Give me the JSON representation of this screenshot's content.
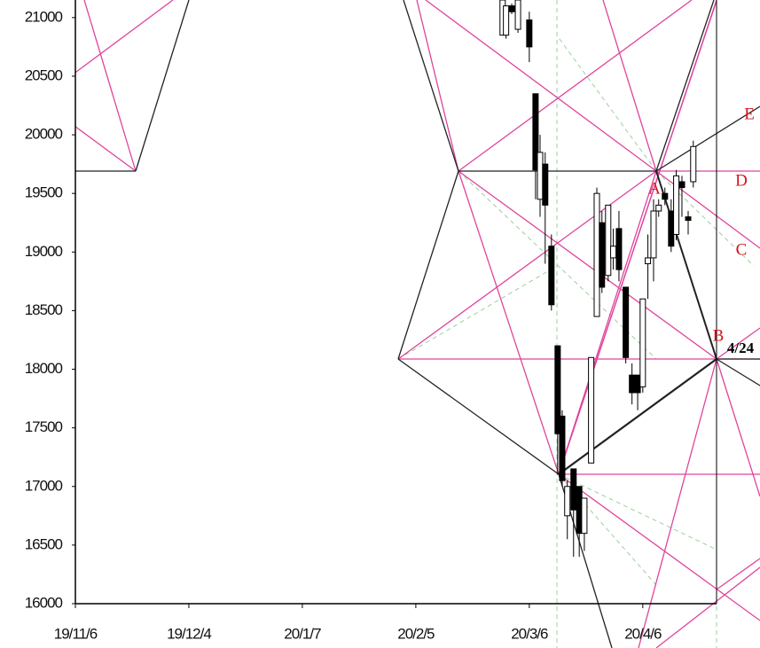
{
  "chart_data": {
    "type": "candlestick",
    "x": [
      75.3,
      75.9,
      76.9,
      78,
      80,
      81.1,
      81.9,
      82.8,
      83.9,
      85,
      85.8,
      86.7,
      87.8,
      88.8,
      89.7,
      90.9,
      91.9,
      92.8,
      93.9,
      94.8,
      95.8,
      97,
      98.1,
      99.1,
      100,
      100.9,
      101.9,
      102.8,
      103.9,
      105,
      105.9,
      106.9,
      108,
      108.9
    ],
    "open": [
      20850,
      20850,
      21100,
      20900,
      20980,
      20350,
      19450,
      19750,
      19050,
      18200,
      17600,
      16750,
      17150,
      17000,
      16600,
      17200,
      18450,
      19250,
      18800,
      18950,
      19200,
      18700,
      17950,
      17950,
      17850,
      18900,
      18950,
      19350,
      19500,
      19350,
      19150,
      19600,
      19300,
      19600
    ],
    "high": [
      21150,
      21100,
      21120,
      21150,
      21050,
      20350,
      20000,
      19850,
      19150,
      18200,
      17650,
      17050,
      17150,
      17000,
      16900,
      18100,
      19550,
      19350,
      19400,
      19200,
      19350,
      18700,
      18050,
      17950,
      18600,
      19150,
      19450,
      19450,
      19550,
      19450,
      19700,
      19650,
      19350,
      19950
    ],
    "low": [
      20850,
      20820,
      21030,
      20870,
      20620,
      19450,
      19300,
      18900,
      18500,
      17100,
      17000,
      16550,
      16400,
      16400,
      16450,
      17200,
      18450,
      18650,
      18750,
      18850,
      18750,
      18050,
      17700,
      17650,
      17800,
      18600,
      18750,
      19300,
      19400,
      19000,
      19100,
      19300,
      19150,
      19550
    ],
    "close": [
      21150,
      21100,
      21050,
      21150,
      20750,
      19700,
      19850,
      19400,
      18550,
      17450,
      17050,
      17000,
      16800,
      16600,
      16900,
      18100,
      19500,
      18700,
      19400,
      19050,
      18850,
      18100,
      17800,
      17800,
      18600,
      18950,
      19350,
      19400,
      19450,
      19050,
      19650,
      19550,
      19270,
      19900
    ],
    "xlim": [
      0,
      113
    ],
    "ylim": [
      16000,
      21150
    ],
    "yticks": [
      16000,
      16500,
      17000,
      17500,
      18000,
      18500,
      19000,
      19500,
      20000,
      20500,
      21000
    ],
    "xticks": [
      {
        "value": 0,
        "label": "19/11/6"
      },
      {
        "value": 20,
        "label": "19/12/4"
      },
      {
        "value": 40,
        "label": "20/1/7"
      },
      {
        "value": 60,
        "label": "20/2/5"
      },
      {
        "value": 80,
        "label": "20/3/6"
      },
      {
        "value": 100,
        "label": "20/4/6"
      }
    ],
    "annotations": [
      "A",
      "B",
      "C",
      "D",
      "E",
      "4/24"
    ],
    "up_color": "#ffffff",
    "down_color": "#000000"
  }
}
